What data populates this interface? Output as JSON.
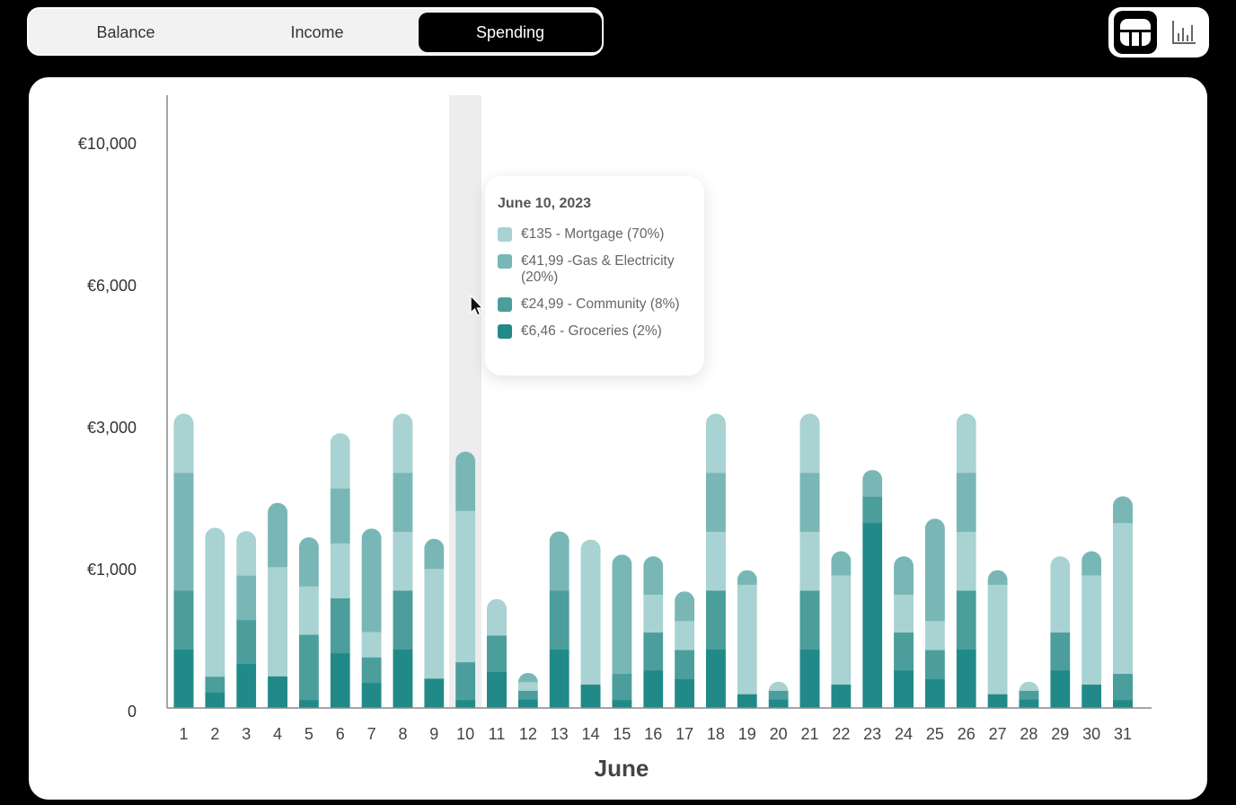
{
  "tabs": [
    {
      "label": "Balance",
      "active": false
    },
    {
      "label": "Income",
      "active": false
    },
    {
      "label": "Spending",
      "active": true
    }
  ],
  "view_toggle": [
    {
      "icon": "stacked-bar-chart-icon",
      "active": true
    },
    {
      "icon": "bar-chart-icon",
      "active": false
    }
  ],
  "colors": {
    "mortgage": "#a8d3d2",
    "gas_electricity": "#79b7b6",
    "community": "#4b9e9c",
    "groceries": "#218a88",
    "hover_band": "#ededed"
  },
  "tooltip": {
    "date": "June 10, 2023",
    "items": [
      {
        "text": "€135 - Mortgage (70%)",
        "color": "#a8d3d2"
      },
      {
        "text": "€41,99 -Gas & Electricity (20%)",
        "color": "#79b7b6"
      },
      {
        "text": "€24,99 - Community (8%)",
        "color": "#4b9e9c"
      },
      {
        "text": "€6,46 - Groceries (2%)",
        "color": "#218a88"
      }
    ]
  },
  "chart_data": {
    "type": "bar",
    "stacked": true,
    "xlabel": "June",
    "ylabel": "",
    "yticks": [
      "0",
      "€1,000",
      "€3,000",
      "€6,000",
      "€10,000"
    ],
    "categories": [
      "1",
      "2",
      "3",
      "4",
      "5",
      "6",
      "7",
      "8",
      "9",
      "10",
      "11",
      "12",
      "13",
      "14",
      "15",
      "16",
      "17",
      "18",
      "19",
      "20",
      "21",
      "22",
      "23",
      "24",
      "25",
      "26",
      "27",
      "28",
      "29",
      "30",
      "31"
    ],
    "highlighted": "10",
    "series": [
      {
        "key": "groceries",
        "values": [
          2.08,
          0.56,
          1.57,
          1.13,
          0.29,
          1.95,
          0.9,
          2.08,
          1.05,
          0.29,
          1.29,
          0.31,
          2.08,
          0.84,
          0.29,
          1.34,
          1.03,
          2.08,
          0.5,
          0.31,
          2.08,
          0.84,
          6.55,
          1.34,
          1.03,
          2.08,
          0.5,
          0.31,
          1.34,
          0.84,
          0.29
        ]
      },
      {
        "key": "community",
        "values": [
          2.08,
          0.56,
          1.55,
          0,
          2.31,
          1.94,
          0.9,
          2.08,
          0,
          1.34,
          1.28,
          0.31,
          2.08,
          0,
          0.93,
          1.34,
          1.03,
          2.08,
          0,
          0.31,
          2.08,
          0,
          0.93,
          1.34,
          1.03,
          2.08,
          0,
          0.31,
          1.34,
          0,
          0.93
        ]
      },
      {
        "key": "mortgage",
        "values": [
          0,
          5.25,
          0,
          3.86,
          1.71,
          1.94,
          0.9,
          2.08,
          3.88,
          5.35,
          1.28,
          0.31,
          0,
          5.11,
          0,
          1.34,
          1.03,
          2.08,
          3.87,
          0.31,
          2.08,
          3.86,
          0,
          1.34,
          1.03,
          2.08,
          3.87,
          0.31,
          1.34,
          3.86,
          5.33
        ]
      },
      {
        "key": "gas_electricity",
        "values": [
          4.16,
          0,
          1.57,
          1.13,
          1.72,
          1.94,
          3.64,
          2.08,
          1.05,
          2.08,
          0,
          0.31,
          2.08,
          0,
          4.2,
          1.34,
          1.03,
          2.08,
          0.5,
          0,
          2.08,
          0.84,
          0.93,
          1.34,
          3.6,
          2.08,
          0.5,
          0,
          0,
          0.84,
          0.93
        ]
      },
      {
        "key": "mortgage",
        "values": [
          2.08,
          0,
          1.56,
          0,
          0,
          1.94,
          0,
          2.08,
          0,
          0,
          0,
          0,
          0,
          0,
          0,
          0,
          0,
          2.08,
          0,
          0,
          2.08,
          0,
          0,
          0,
          0,
          2.08,
          0,
          0,
          1.34,
          0,
          0
        ]
      },
      {
        "key": "gas_electricity",
        "values": [
          0,
          0,
          0,
          1.13,
          0,
          0,
          0,
          0,
          0,
          0,
          0,
          0,
          0,
          0,
          0,
          0,
          0,
          0,
          0,
          0,
          0,
          0,
          0,
          0,
          0,
          0,
          0,
          0,
          0,
          0,
          0
        ]
      }
    ]
  }
}
